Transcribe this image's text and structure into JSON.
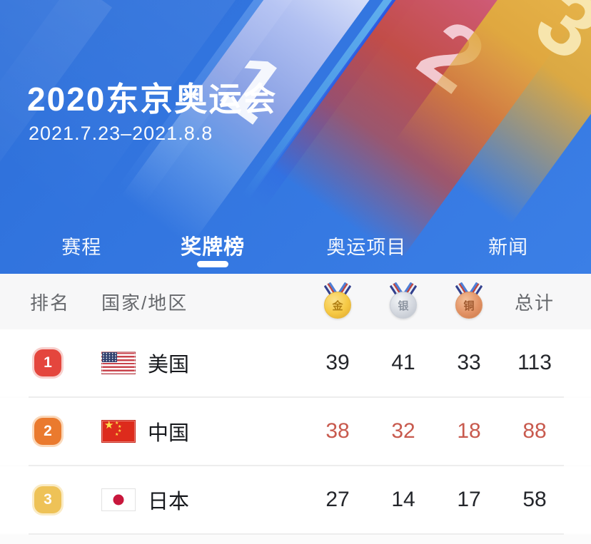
{
  "header": {
    "title": "2020东京奥运会",
    "date_range": "2021.7.23–2021.8.8",
    "podium": {
      "first": "1",
      "second": "2",
      "third": "3"
    }
  },
  "tabs": [
    {
      "label": "赛程",
      "active": false
    },
    {
      "label": "奖牌榜",
      "active": true
    },
    {
      "label": "奥运项目",
      "active": false
    },
    {
      "label": "新闻",
      "active": false
    }
  ],
  "medal_table": {
    "columns": {
      "rank": "排名",
      "country": "国家/地区",
      "gold_medal": "金",
      "silver_medal": "银",
      "bronze_medal": "铜",
      "total": "总计"
    },
    "rows": [
      {
        "rank": "1",
        "country": "美国",
        "flag": "usa",
        "gold": "39",
        "silver": "41",
        "bronze": "33",
        "total": "113",
        "highlight": false
      },
      {
        "rank": "2",
        "country": "中国",
        "flag": "china",
        "gold": "38",
        "silver": "32",
        "bronze": "18",
        "total": "88",
        "highlight": true
      },
      {
        "rank": "3",
        "country": "日本",
        "flag": "japan",
        "gold": "27",
        "silver": "14",
        "bronze": "17",
        "total": "58",
        "highlight": false
      }
    ]
  },
  "colors": {
    "primary_blue": "#3376e0",
    "rank1_badge": "#e4463d",
    "rank2_badge": "#ea7a2e",
    "rank3_badge": "#eec257",
    "highlight_red": "#c85a4e",
    "gold": "#f6c944",
    "silver": "#d4d8df",
    "bronze": "#e29265"
  }
}
